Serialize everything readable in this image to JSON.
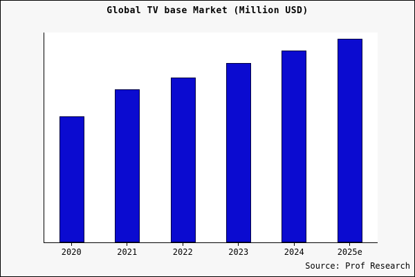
{
  "title": "Global TV base Market (Million USD)",
  "source_note": "Source: Prof Research",
  "colors": {
    "bar_fill": "#0b0bd0",
    "bar_edge": "#000040",
    "page_bg": "#f7f7f7",
    "plot_bg": "#ffffff",
    "frame_border": "#000000",
    "text": "#000000"
  },
  "chart_data": {
    "type": "bar",
    "categories": [
      "2020",
      "2021",
      "2022",
      "2023",
      "2024",
      "2025e"
    ],
    "values": [
      62,
      75,
      81,
      88,
      94,
      100
    ],
    "title": "Global TV base Market (Million USD)",
    "xlabel": "",
    "ylabel": "",
    "ylim": [
      0,
      103
    ],
    "grid": false,
    "legend": false,
    "source": "Source: Prof Research"
  }
}
